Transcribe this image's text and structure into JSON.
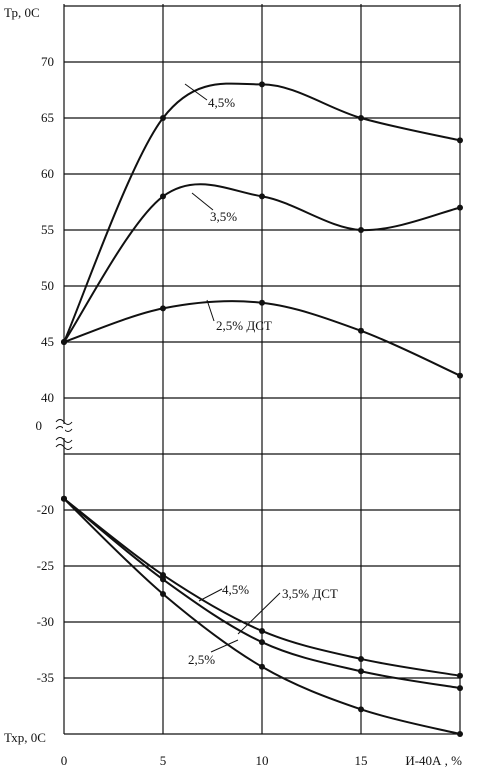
{
  "chart_data": {
    "type": "line",
    "x_axis": {
      "label": "И-40А , %",
      "ticks": [
        0,
        5,
        10,
        15
      ],
      "range": [
        0,
        20
      ]
    },
    "upper_panel": {
      "y_label": "Тр, 0С",
      "y_ticks": [
        40,
        45,
        50,
        55,
        60,
        65,
        70
      ],
      "y_range": [
        40,
        75
      ],
      "series": [
        {
          "name": "4,5%",
          "x": [
            0,
            5,
            10,
            15,
            20
          ],
          "y": [
            45,
            65,
            68,
            65,
            63
          ]
        },
        {
          "name": "3,5%",
          "x": [
            0,
            5,
            10,
            15,
            20
          ],
          "y": [
            45,
            58,
            58,
            55,
            57
          ]
        },
        {
          "name": "2,5% ДСТ",
          "x": [
            0,
            5,
            10,
            15,
            20
          ],
          "y": [
            45,
            48,
            48.5,
            46,
            42
          ]
        }
      ]
    },
    "break_label": "0",
    "lower_panel": {
      "y_label": "Тхр, 0С",
      "y_ticks": [
        -20,
        -25,
        -30,
        -35
      ],
      "y_range": [
        -40,
        -15
      ],
      "series": [
        {
          "name": "4,5%",
          "x": [
            0,
            5,
            10,
            15,
            20
          ],
          "y": [
            -19,
            -25.8,
            -30.8,
            -33.3,
            -34.8
          ]
        },
        {
          "name": "3,5% ДСТ",
          "x": [
            0,
            5,
            10,
            15,
            20
          ],
          "y": [
            -19,
            -26.2,
            -31.8,
            -34.4,
            -35.9
          ]
        },
        {
          "name": "2,5%",
          "x": [
            0,
            5,
            10,
            15,
            20
          ],
          "y": [
            -19,
            -27.5,
            -34,
            -37.8,
            -40
          ]
        }
      ]
    }
  }
}
